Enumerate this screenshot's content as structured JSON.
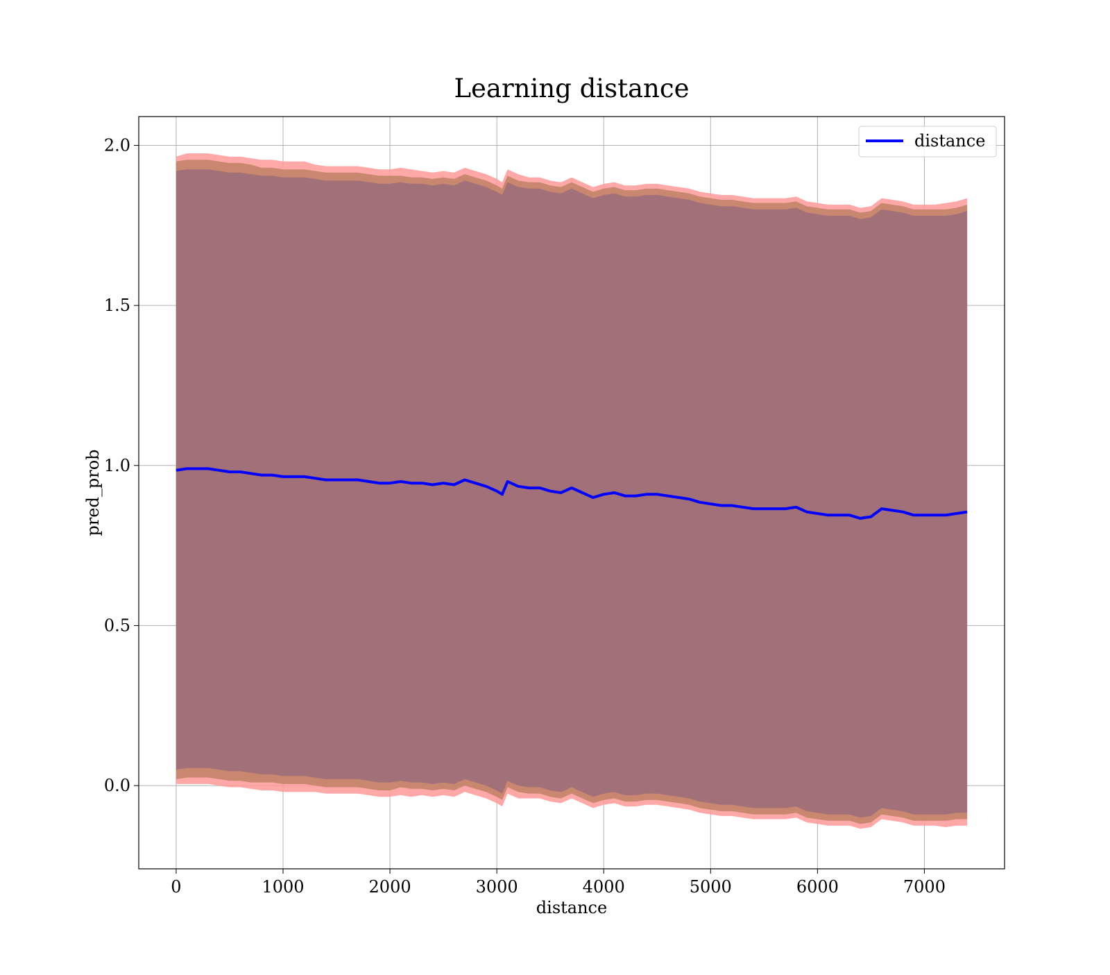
{
  "chart_data": {
    "type": "line",
    "title": "Learning distance",
    "xlabel": "distance",
    "ylabel": "pred_prob",
    "xlim": [
      -350,
      7750
    ],
    "ylim": [
      -0.26,
      2.09
    ],
    "x_ticks": [
      "0",
      "1000",
      "2000",
      "3000",
      "4000",
      "5000",
      "6000",
      "7000"
    ],
    "y_ticks": [
      "0.0",
      "0.5",
      "1.0",
      "1.5",
      "2.0"
    ],
    "grid": true,
    "legend_position": "top-right",
    "colors": {
      "line": "#0000ff",
      "band_outer": "#ff9999",
      "band_middle": "#c8876e",
      "band_inner": "#a17079"
    },
    "series": [
      {
        "name": "distance",
        "x": [
          0,
          100,
          200,
          300,
          400,
          500,
          600,
          700,
          800,
          900,
          1000,
          1100,
          1200,
          1300,
          1400,
          1500,
          1600,
          1700,
          1800,
          1900,
          2000,
          2100,
          2200,
          2300,
          2400,
          2500,
          2600,
          2700,
          2800,
          2900,
          3000,
          3050,
          3100,
          3200,
          3300,
          3400,
          3500,
          3600,
          3700,
          3800,
          3900,
          4000,
          4100,
          4200,
          4300,
          4400,
          4500,
          4600,
          4700,
          4800,
          4900,
          5000,
          5100,
          5200,
          5300,
          5400,
          5500,
          5600,
          5700,
          5800,
          5900,
          6000,
          6100,
          6200,
          6300,
          6400,
          6500,
          6600,
          6700,
          6800,
          6900,
          7000,
          7100,
          7200,
          7300,
          7400
        ],
        "values": [
          0.985,
          0.99,
          0.99,
          0.99,
          0.985,
          0.98,
          0.98,
          0.975,
          0.97,
          0.97,
          0.965,
          0.965,
          0.965,
          0.96,
          0.955,
          0.955,
          0.955,
          0.955,
          0.95,
          0.945,
          0.945,
          0.95,
          0.945,
          0.945,
          0.94,
          0.945,
          0.94,
          0.955,
          0.945,
          0.935,
          0.92,
          0.91,
          0.95,
          0.935,
          0.93,
          0.93,
          0.92,
          0.915,
          0.93,
          0.915,
          0.9,
          0.91,
          0.915,
          0.905,
          0.905,
          0.91,
          0.91,
          0.905,
          0.9,
          0.895,
          0.885,
          0.88,
          0.875,
          0.875,
          0.87,
          0.865,
          0.865,
          0.865,
          0.865,
          0.87,
          0.855,
          0.85,
          0.845,
          0.845,
          0.845,
          0.835,
          0.84,
          0.865,
          0.86,
          0.855,
          0.845,
          0.845,
          0.845,
          0.845,
          0.85,
          0.855
        ],
        "band_outer_halfwidth": [
          0.98,
          0.985,
          0.985,
          0.985,
          0.985,
          0.985,
          0.985,
          0.985,
          0.985,
          0.985,
          0.985,
          0.985,
          0.985,
          0.98,
          0.98,
          0.98,
          0.98,
          0.98,
          0.98,
          0.98,
          0.98,
          0.98,
          0.98,
          0.975,
          0.975,
          0.975,
          0.975,
          0.975,
          0.975,
          0.975,
          0.975,
          0.975,
          0.975,
          0.975,
          0.97,
          0.97,
          0.97,
          0.97,
          0.97,
          0.97,
          0.97,
          0.97,
          0.97,
          0.97,
          0.97,
          0.97,
          0.97,
          0.97,
          0.97,
          0.97,
          0.97,
          0.97,
          0.97,
          0.97,
          0.97,
          0.97,
          0.97,
          0.97,
          0.97,
          0.97,
          0.97,
          0.97,
          0.97,
          0.97,
          0.97,
          0.97,
          0.97,
          0.97,
          0.97,
          0.97,
          0.97,
          0.97,
          0.97,
          0.975,
          0.975,
          0.98
        ],
        "band_middle_halfwidth": [
          0.965,
          0.965,
          0.965,
          0.965,
          0.965,
          0.965,
          0.965,
          0.965,
          0.96,
          0.96,
          0.96,
          0.96,
          0.96,
          0.96,
          0.96,
          0.96,
          0.96,
          0.96,
          0.96,
          0.96,
          0.96,
          0.955,
          0.955,
          0.955,
          0.955,
          0.955,
          0.955,
          0.955,
          0.955,
          0.955,
          0.955,
          0.955,
          0.955,
          0.955,
          0.955,
          0.955,
          0.955,
          0.955,
          0.955,
          0.955,
          0.955,
          0.955,
          0.955,
          0.955,
          0.955,
          0.955,
          0.955,
          0.955,
          0.955,
          0.955,
          0.955,
          0.955,
          0.955,
          0.955,
          0.955,
          0.955,
          0.955,
          0.955,
          0.955,
          0.955,
          0.955,
          0.955,
          0.955,
          0.955,
          0.955,
          0.955,
          0.955,
          0.955,
          0.955,
          0.955,
          0.955,
          0.955,
          0.955,
          0.955,
          0.955,
          0.96
        ],
        "band_inner_halfwidth": [
          0.935,
          0.935,
          0.935,
          0.935,
          0.935,
          0.935,
          0.935,
          0.935,
          0.935,
          0.935,
          0.935,
          0.935,
          0.935,
          0.935,
          0.935,
          0.935,
          0.935,
          0.935,
          0.935,
          0.935,
          0.935,
          0.935,
          0.935,
          0.935,
          0.935,
          0.935,
          0.935,
          0.935,
          0.935,
          0.935,
          0.935,
          0.935,
          0.935,
          0.935,
          0.935,
          0.935,
          0.935,
          0.935,
          0.935,
          0.935,
          0.935,
          0.935,
          0.935,
          0.935,
          0.935,
          0.935,
          0.935,
          0.935,
          0.935,
          0.935,
          0.935,
          0.935,
          0.935,
          0.935,
          0.935,
          0.935,
          0.935,
          0.935,
          0.935,
          0.935,
          0.935,
          0.935,
          0.935,
          0.935,
          0.935,
          0.935,
          0.935,
          0.935,
          0.935,
          0.935,
          0.935,
          0.935,
          0.935,
          0.935,
          0.935,
          0.94
        ]
      }
    ]
  }
}
